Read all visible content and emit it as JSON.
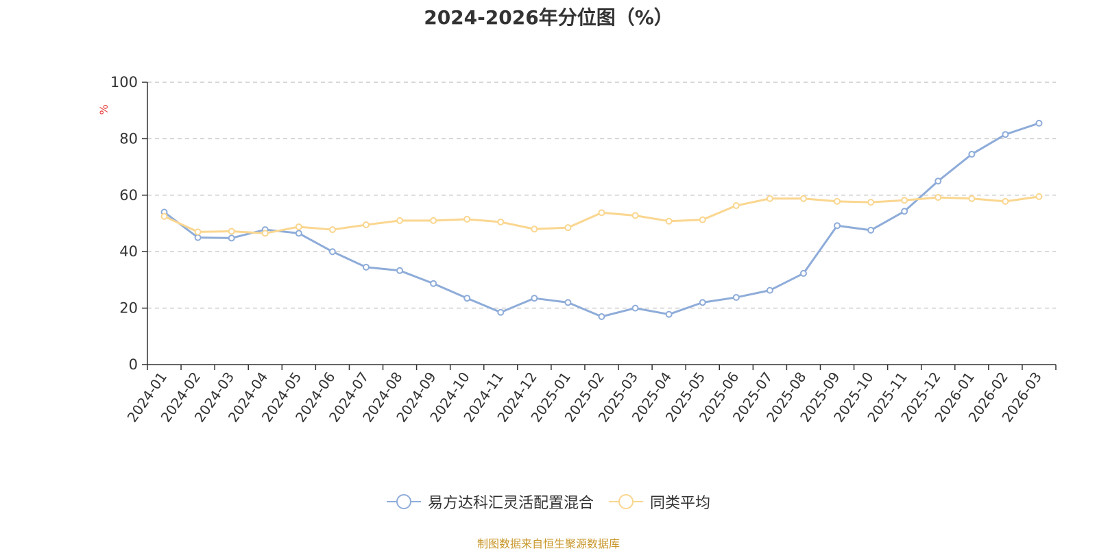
{
  "chart_data": {
    "type": "line",
    "title": "2024-2026年分位图（%）",
    "ylabel": "%",
    "xlabel": "",
    "ylim": [
      0,
      100
    ],
    "yticks": [
      "0",
      "20",
      "40",
      "60",
      "80",
      "100"
    ],
    "grid": true,
    "legend_position": "bottom",
    "categories": [
      "2024-01",
      "2024-02",
      "2024-03",
      "2024-04",
      "2024-05",
      "2024-06",
      "2024-07",
      "2024-08",
      "2024-09",
      "2024-10",
      "2024-11",
      "2024-12",
      "2025-01",
      "2025-02",
      "2025-03",
      "2025-04",
      "2025-05",
      "2025-06",
      "2025-07",
      "2025-08",
      "2025-09",
      "2025-10",
      "2025-11",
      "2025-12",
      "2026-01",
      "2026-02",
      "2026-03"
    ],
    "series": [
      {
        "name": "易方达科汇灵活配置混合",
        "color": "#8eacd9",
        "values": [
          54,
          45,
          44.8,
          47.8,
          46.5,
          40,
          34.5,
          33.3,
          28.7,
          23.5,
          18.5,
          23.5,
          22,
          17,
          20,
          17.8,
          22,
          23.8,
          26.3,
          32.3,
          49.2,
          47.6,
          54.3,
          65,
          74.5,
          81.5,
          85.5
        ]
      },
      {
        "name": "同类平均",
        "color": "#fad68f",
        "values": [
          52.5,
          47,
          47.2,
          46.5,
          48.8,
          47.8,
          49.5,
          51,
          51,
          51.5,
          50.5,
          48,
          48.5,
          53.8,
          52.8,
          50.8,
          51.3,
          56.3,
          58.8,
          58.8,
          57.8,
          57.5,
          58.2,
          59.2,
          58.8,
          57.8,
          59.5
        ]
      }
    ]
  },
  "footer": {
    "source": "制图数据来自恒生聚源数据库"
  }
}
